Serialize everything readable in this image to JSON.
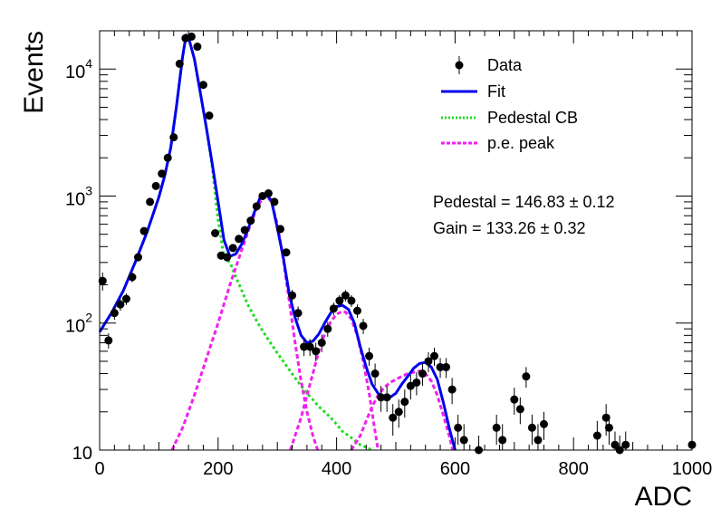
{
  "chart_data": {
    "type": "scatter",
    "xlabel": "ADC",
    "ylabel": "Events",
    "xlim": [
      0,
      1000
    ],
    "ylim": [
      10,
      20000
    ],
    "yscale": "log",
    "x_ticks": [
      0,
      200,
      400,
      600,
      800,
      1000
    ],
    "y_ticks": [
      {
        "value": 10,
        "base": "10",
        "exp": ""
      },
      {
        "value": 100,
        "base": "10",
        "exp": "2"
      },
      {
        "value": 1000,
        "base": "10",
        "exp": "3"
      },
      {
        "value": 10000,
        "base": "10",
        "exp": "4"
      }
    ],
    "grid": false,
    "legend_position": "top-right",
    "legend": [
      {
        "label": "Data",
        "style": "marker",
        "color": "#000000"
      },
      {
        "label": "Fit",
        "style": "solid",
        "color": "#0000ee"
      },
      {
        "label": "Pedestal CB",
        "style": "dotted",
        "color": "#22dd22"
      },
      {
        "label": "p.e. peak",
        "style": "dashed",
        "color": "#ee22ee"
      }
    ],
    "annotations": [
      {
        "text": "Pedestal = 146.83",
        "pm": "±",
        "err": "0.12"
      },
      {
        "text": "Gain = 133.26",
        "pm": "±",
        "err": "0.32"
      }
    ],
    "series": [
      {
        "name": "Data",
        "color": "#000000",
        "points": [
          [
            5,
            215,
            35
          ],
          [
            15,
            73,
            10
          ],
          [
            25,
            120,
            14
          ],
          [
            35,
            140,
            15
          ],
          [
            45,
            155,
            16
          ],
          [
            55,
            230,
            20
          ],
          [
            65,
            330,
            25
          ],
          [
            75,
            530,
            30
          ],
          [
            85,
            900,
            40
          ],
          [
            95,
            1200,
            45
          ],
          [
            105,
            1500,
            50
          ],
          [
            115,
            2000,
            60
          ],
          [
            125,
            2900,
            70
          ],
          [
            135,
            11000,
            150
          ],
          [
            145,
            17500,
            200
          ],
          [
            155,
            18000,
            200
          ],
          [
            165,
            15000,
            180
          ],
          [
            175,
            7500,
            120
          ],
          [
            185,
            4300,
            90
          ],
          [
            195,
            510,
            30
          ],
          [
            205,
            340,
            25
          ],
          [
            215,
            330,
            24
          ],
          [
            225,
            390,
            26
          ],
          [
            235,
            460,
            28
          ],
          [
            245,
            540,
            30
          ],
          [
            255,
            640,
            33
          ],
          [
            265,
            830,
            38
          ],
          [
            275,
            1000,
            42
          ],
          [
            285,
            1050,
            42
          ],
          [
            295,
            900,
            40
          ],
          [
            305,
            550,
            30
          ],
          [
            315,
            360,
            25
          ],
          [
            325,
            165,
            18
          ],
          [
            335,
            120,
            15
          ],
          [
            345,
            65,
            10
          ],
          [
            355,
            65,
            10
          ],
          [
            365,
            60,
            10
          ],
          [
            375,
            70,
            11
          ],
          [
            385,
            90,
            12
          ],
          [
            395,
            130,
            15
          ],
          [
            405,
            150,
            16
          ],
          [
            415,
            165,
            17
          ],
          [
            425,
            150,
            16
          ],
          [
            435,
            125,
            15
          ],
          [
            445,
            95,
            13
          ],
          [
            455,
            55,
            9
          ],
          [
            465,
            40,
            8
          ],
          [
            475,
            26,
            6
          ],
          [
            485,
            26,
            6
          ],
          [
            495,
            18,
            5
          ],
          [
            505,
            20,
            5
          ],
          [
            515,
            24,
            6
          ],
          [
            525,
            32,
            7
          ],
          [
            535,
            34,
            7
          ],
          [
            545,
            40,
            8
          ],
          [
            555,
            50,
            9
          ],
          [
            565,
            55,
            9
          ],
          [
            575,
            45,
            8
          ],
          [
            585,
            45,
            8
          ],
          [
            595,
            30,
            7
          ],
          [
            605,
            15,
            4
          ],
          [
            615,
            12,
            4
          ],
          [
            640,
            10,
            3
          ],
          [
            670,
            15,
            4
          ],
          [
            680,
            12,
            4
          ],
          [
            700,
            25,
            6
          ],
          [
            710,
            21,
            5
          ],
          [
            720,
            38,
            7
          ],
          [
            730,
            15,
            4
          ],
          [
            740,
            12,
            4
          ],
          [
            750,
            16,
            4
          ],
          [
            840,
            13,
            4
          ],
          [
            855,
            18,
            5
          ],
          [
            860,
            15,
            4
          ],
          [
            870,
            11,
            3
          ],
          [
            878,
            10,
            3
          ],
          [
            888,
            11,
            3
          ],
          [
            1000,
            11,
            4
          ]
        ]
      },
      {
        "name": "Fit",
        "color": "#0000ee",
        "points": [
          [
            0,
            85
          ],
          [
            20,
            120
          ],
          [
            40,
            180
          ],
          [
            60,
            300
          ],
          [
            80,
            520
          ],
          [
            100,
            980
          ],
          [
            110,
            1450
          ],
          [
            120,
            2400
          ],
          [
            130,
            5200
          ],
          [
            140,
            12500
          ],
          [
            146,
            18500
          ],
          [
            150,
            17800
          ],
          [
            160,
            12000
          ],
          [
            170,
            6500
          ],
          [
            180,
            3500
          ],
          [
            190,
            1800
          ],
          [
            200,
            900
          ],
          [
            210,
            450
          ],
          [
            220,
            335
          ],
          [
            230,
            350
          ],
          [
            240,
            420
          ],
          [
            250,
            540
          ],
          [
            260,
            720
          ],
          [
            270,
            950
          ],
          [
            280,
            1050
          ],
          [
            290,
            920
          ],
          [
            300,
            560
          ],
          [
            310,
            330
          ],
          [
            320,
            170
          ],
          [
            330,
            110
          ],
          [
            340,
            80
          ],
          [
            350,
            70
          ],
          [
            360,
            72
          ],
          [
            370,
            82
          ],
          [
            380,
            100
          ],
          [
            390,
            120
          ],
          [
            400,
            135
          ],
          [
            410,
            138
          ],
          [
            420,
            128
          ],
          [
            430,
            100
          ],
          [
            440,
            65
          ],
          [
            450,
            45
          ],
          [
            460,
            33
          ],
          [
            470,
            28
          ],
          [
            480,
            26
          ],
          [
            490,
            26
          ],
          [
            500,
            28
          ],
          [
            510,
            33
          ],
          [
            520,
            38
          ],
          [
            530,
            44
          ],
          [
            540,
            48
          ],
          [
            550,
            49
          ],
          [
            560,
            45
          ],
          [
            570,
            36
          ],
          [
            580,
            24
          ],
          [
            590,
            15
          ],
          [
            600,
            10
          ]
        ]
      },
      {
        "name": "Pedestal CB",
        "color": "#22dd22",
        "points": [
          [
            0,
            85
          ],
          [
            20,
            120
          ],
          [
            40,
            180
          ],
          [
            60,
            300
          ],
          [
            80,
            520
          ],
          [
            100,
            980
          ],
          [
            110,
            1450
          ],
          [
            120,
            2400
          ],
          [
            130,
            5200
          ],
          [
            140,
            12500
          ],
          [
            146,
            18500
          ],
          [
            150,
            17800
          ],
          [
            160,
            12000
          ],
          [
            170,
            6500
          ],
          [
            180,
            3500
          ],
          [
            190,
            1700
          ],
          [
            200,
            650
          ],
          [
            210,
            330
          ],
          [
            220,
            300
          ],
          [
            230,
            230
          ],
          [
            240,
            180
          ],
          [
            250,
            140
          ],
          [
            260,
            115
          ],
          [
            270,
            95
          ],
          [
            280,
            80
          ],
          [
            290,
            68
          ],
          [
            300,
            58
          ],
          [
            310,
            50
          ],
          [
            320,
            43
          ],
          [
            330,
            37
          ],
          [
            340,
            32
          ],
          [
            350,
            28
          ],
          [
            360,
            25
          ],
          [
            370,
            22
          ],
          [
            380,
            20
          ],
          [
            390,
            18
          ],
          [
            400,
            16
          ],
          [
            410,
            14
          ],
          [
            420,
            13
          ],
          [
            430,
            12
          ],
          [
            440,
            11
          ],
          [
            450,
            10.5
          ],
          [
            460,
            10
          ]
        ]
      },
      {
        "name": "p.e. peak 1",
        "color": "#ee22ee",
        "points": [
          [
            122,
            10
          ],
          [
            140,
            15
          ],
          [
            160,
            27
          ],
          [
            180,
            52
          ],
          [
            200,
            100
          ],
          [
            220,
            200
          ],
          [
            240,
            380
          ],
          [
            255,
            600
          ],
          [
            265,
            800
          ],
          [
            275,
            960
          ],
          [
            282,
            1000
          ],
          [
            290,
            900
          ],
          [
            300,
            600
          ],
          [
            310,
            320
          ],
          [
            320,
            150
          ],
          [
            330,
            70
          ],
          [
            340,
            35
          ],
          [
            350,
            20
          ],
          [
            360,
            13
          ],
          [
            368,
            10
          ]
        ]
      },
      {
        "name": "p.e. peak 2",
        "color": "#ee22ee",
        "points": [
          [
            322,
            10
          ],
          [
            330,
            13
          ],
          [
            340,
            18
          ],
          [
            350,
            27
          ],
          [
            360,
            40
          ],
          [
            370,
            60
          ],
          [
            380,
            82
          ],
          [
            390,
            102
          ],
          [
            400,
            118
          ],
          [
            410,
            123
          ],
          [
            415,
            122
          ],
          [
            425,
            108
          ],
          [
            435,
            80
          ],
          [
            445,
            50
          ],
          [
            455,
            28
          ],
          [
            463,
            16
          ],
          [
            470,
            10
          ]
        ]
      },
      {
        "name": "p.e. peak 3",
        "color": "#ee22ee",
        "points": [
          [
            425,
            10
          ],
          [
            440,
            13
          ],
          [
            450,
            17
          ],
          [
            460,
            22
          ],
          [
            470,
            27
          ],
          [
            480,
            31
          ],
          [
            490,
            34
          ],
          [
            500,
            36
          ],
          [
            510,
            38
          ],
          [
            520,
            40
          ],
          [
            530,
            41
          ],
          [
            540,
            42
          ],
          [
            550,
            40
          ],
          [
            560,
            35
          ],
          [
            570,
            27
          ],
          [
            580,
            19
          ],
          [
            590,
            13
          ],
          [
            596,
            10
          ]
        ]
      }
    ]
  }
}
